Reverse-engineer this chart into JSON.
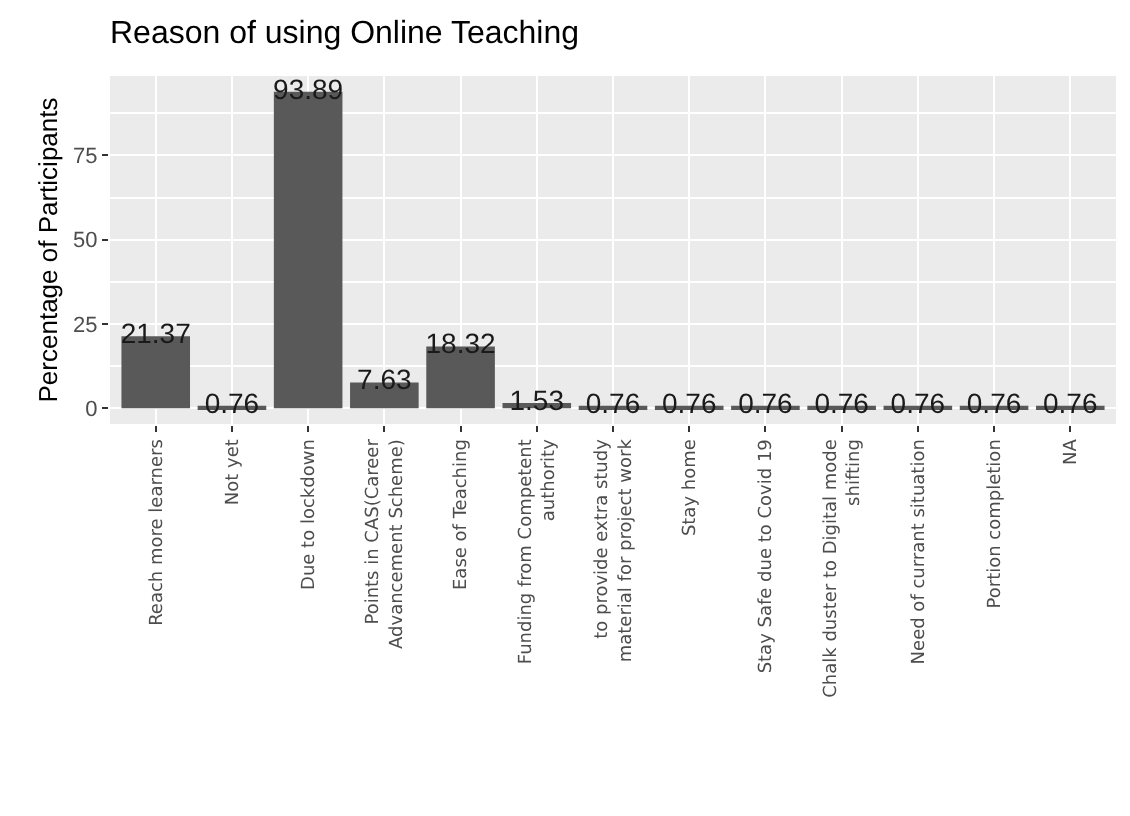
{
  "chart_data": {
    "type": "bar",
    "title": "Reason of using Online Teaching",
    "ylabel": "Percentage of Participants",
    "categories": [
      "Reach more learners",
      "Not yet",
      "Due to lockdown",
      "Points in CAS(Career\nAdvancement Scheme)",
      "Ease of Teaching",
      "Funding from Competent\nauthority",
      "to provide extra study\nmaterial for project work",
      "Stay home",
      "Stay Safe due to Covid 19",
      "Chalk duster to Digital mode\nshifting",
      "Need of currant situation",
      "Portion completion",
      "NA"
    ],
    "values": [
      21.37,
      0.76,
      93.89,
      7.63,
      18.32,
      1.53,
      0.76,
      0.76,
      0.76,
      0.76,
      0.76,
      0.76,
      0.76
    ],
    "color": "#595959",
    "ylim": [
      -4.69,
      98.58
    ],
    "yticks": [
      0,
      25,
      50,
      75
    ],
    "grid": true,
    "data_labels": true
  }
}
